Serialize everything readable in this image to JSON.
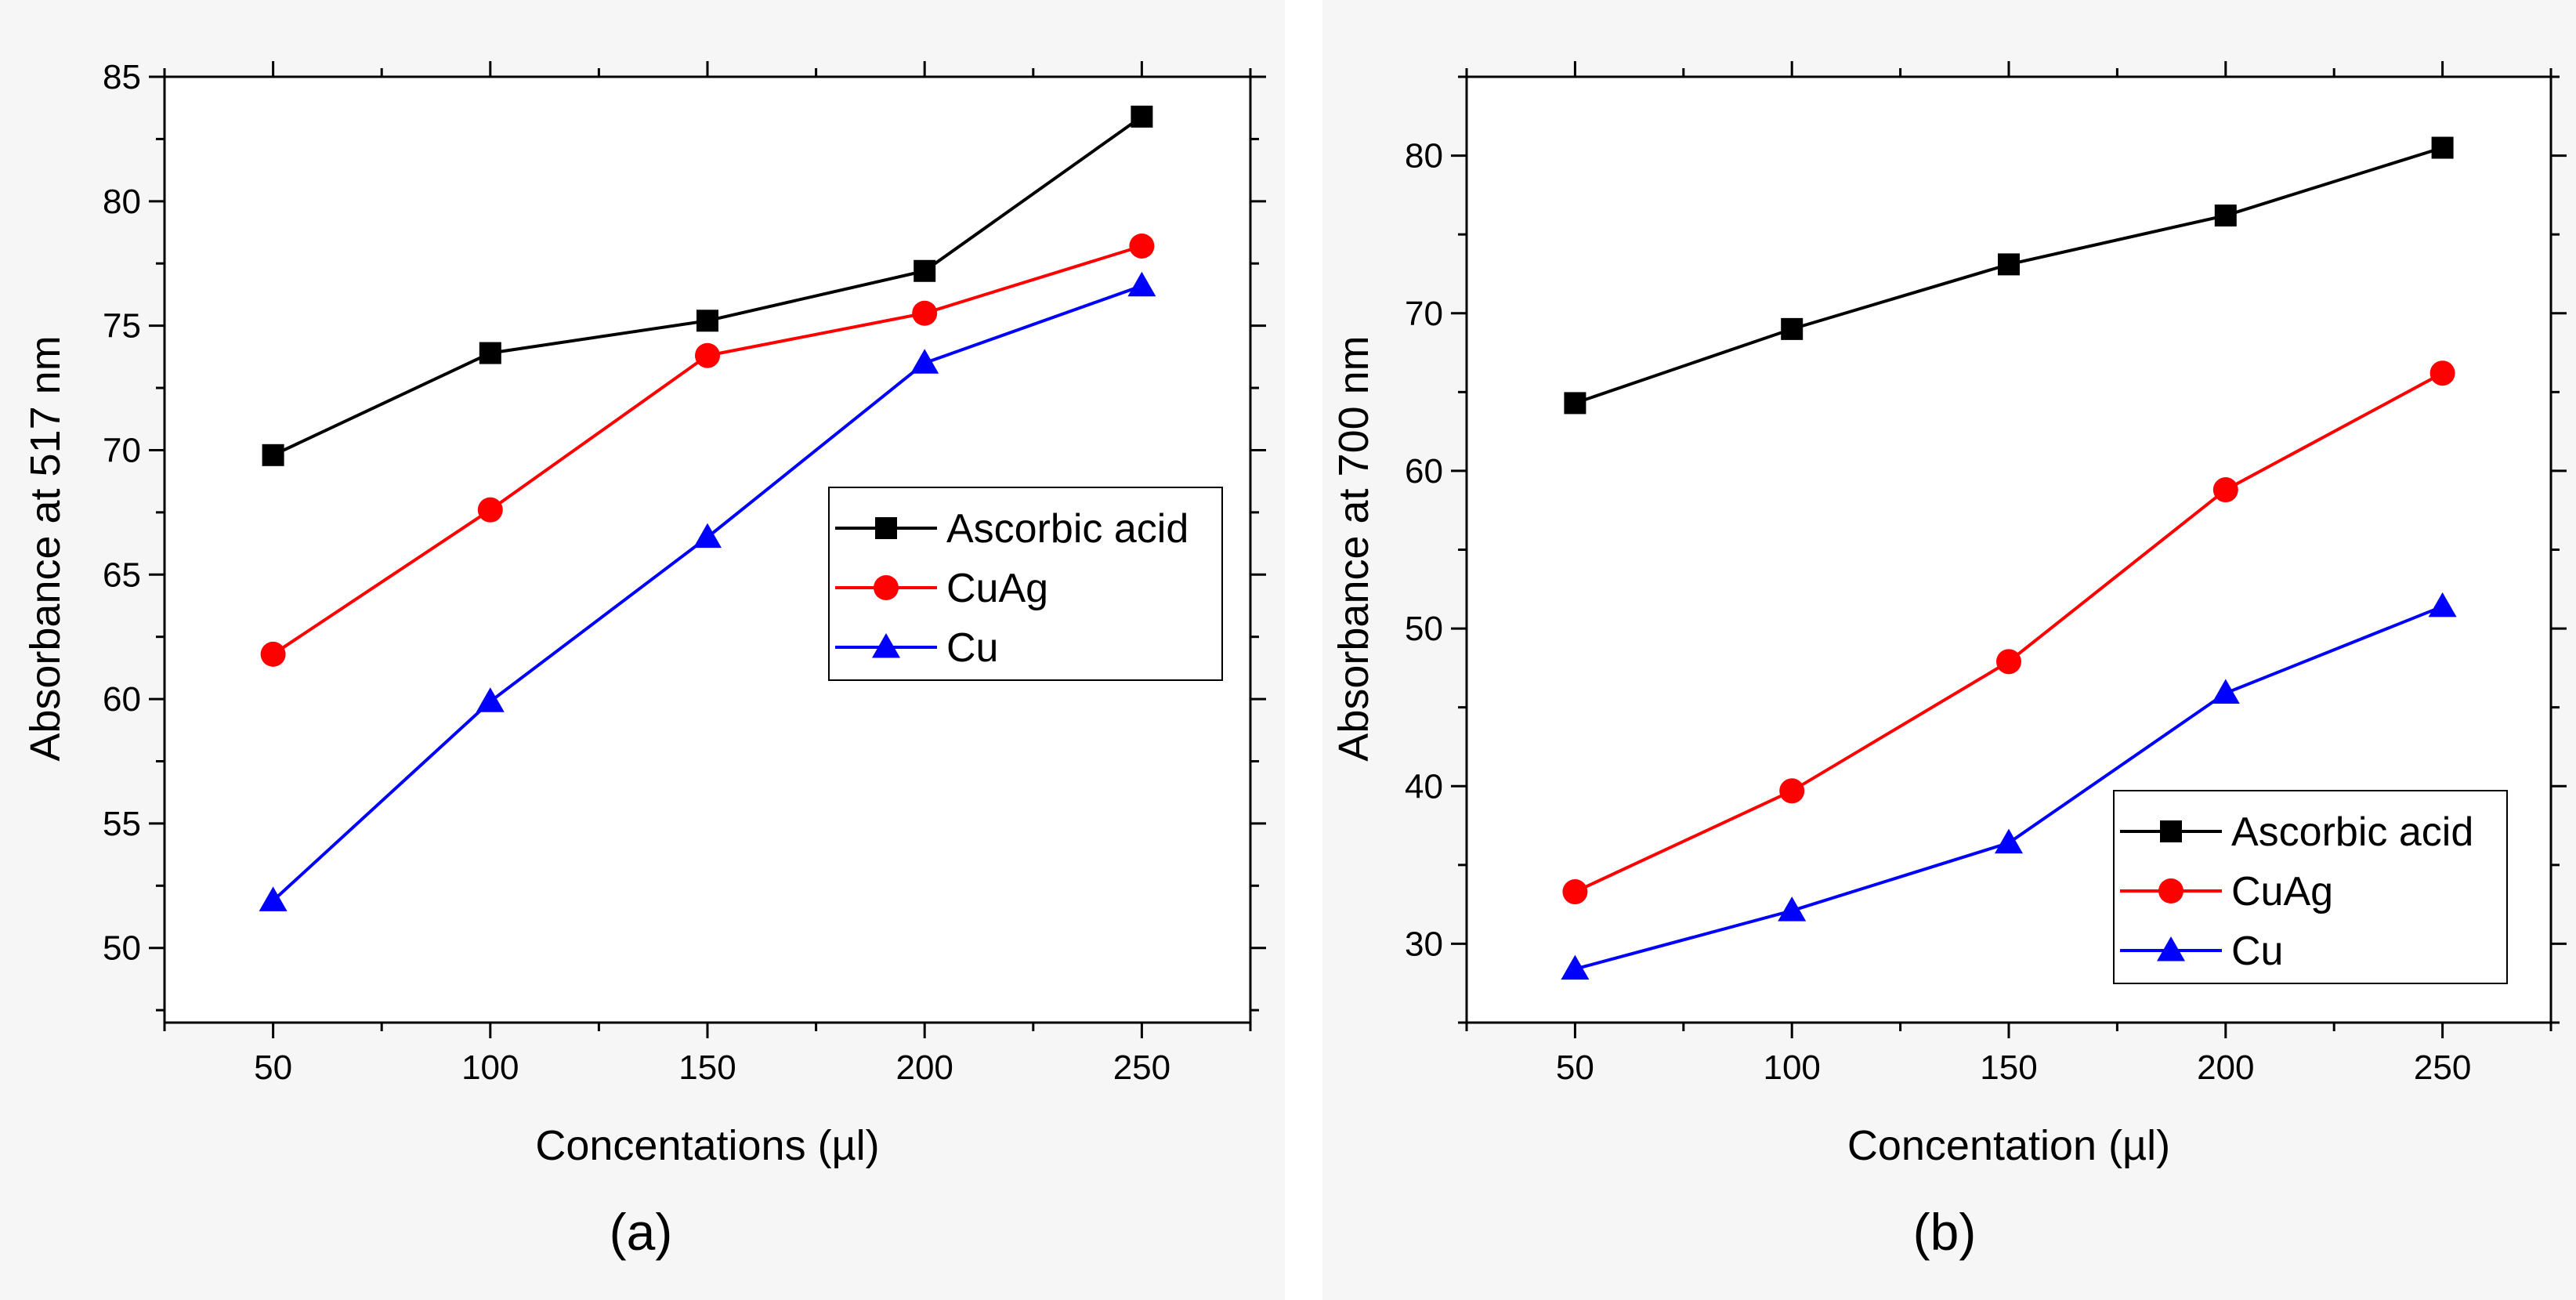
{
  "figure": {
    "background": "#ffffff",
    "panel_background": "#f6f6f6"
  },
  "chart_data": [
    {
      "type": "line",
      "panel_label": "(a)",
      "xlabel": "Concentations (µl)",
      "ylabel": "Absorbance at 517 nm",
      "xlim": [
        25,
        275
      ],
      "ylim": [
        47,
        85
      ],
      "x_ticks": [
        50,
        100,
        150,
        200,
        250
      ],
      "y_ticks": [
        50,
        55,
        60,
        65,
        70,
        75,
        80,
        85
      ],
      "legend_position": "middle-right",
      "series": [
        {
          "name": "Ascorbic acid",
          "color": "#000000",
          "marker": "square",
          "x": [
            50,
            100,
            150,
            200,
            250
          ],
          "y": [
            69.8,
            73.9,
            75.2,
            77.2,
            83.4
          ]
        },
        {
          "name": "CuAg",
          "color": "#ff0000",
          "marker": "circle",
          "x": [
            50,
            100,
            150,
            200,
            250
          ],
          "y": [
            61.8,
            67.6,
            73.8,
            75.5,
            78.2
          ]
        },
        {
          "name": "Cu",
          "color": "#0000ff",
          "marker": "triangle",
          "x": [
            50,
            100,
            150,
            200,
            250
          ],
          "y": [
            51.9,
            59.9,
            66.5,
            73.5,
            76.6
          ]
        }
      ]
    },
    {
      "type": "line",
      "panel_label": "(b)",
      "xlabel": "Concentation (µl)",
      "ylabel": "Absorbance at 700 nm",
      "xlim": [
        25,
        275
      ],
      "ylim": [
        25,
        85
      ],
      "x_ticks": [
        50,
        100,
        150,
        200,
        250
      ],
      "y_ticks": [
        30,
        40,
        50,
        60,
        70,
        80
      ],
      "legend_position": "bottom-right",
      "series": [
        {
          "name": "Ascorbic acid",
          "color": "#000000",
          "marker": "square",
          "x": [
            50,
            100,
            150,
            200,
            250
          ],
          "y": [
            64.3,
            69.0,
            73.1,
            76.2,
            80.5
          ]
        },
        {
          "name": "CuAg",
          "color": "#ff0000",
          "marker": "circle",
          "x": [
            50,
            100,
            150,
            200,
            250
          ],
          "y": [
            33.3,
            39.7,
            47.9,
            58.8,
            66.2
          ]
        },
        {
          "name": "Cu",
          "color": "#0000ff",
          "marker": "triangle",
          "x": [
            50,
            100,
            150,
            200,
            250
          ],
          "y": [
            28.4,
            32.1,
            36.4,
            45.9,
            51.4
          ]
        }
      ]
    }
  ]
}
